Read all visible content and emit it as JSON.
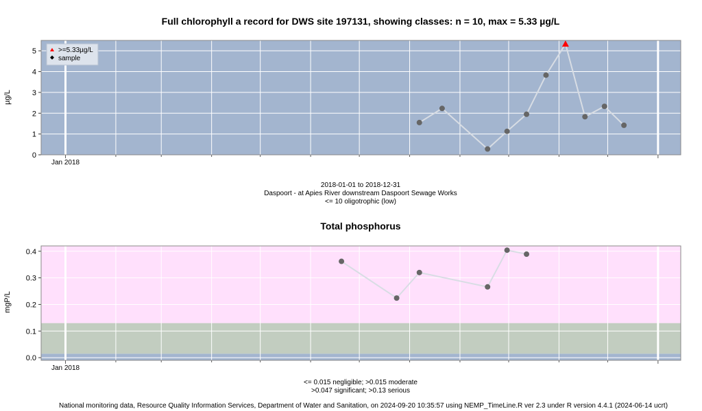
{
  "chart_data": [
    {
      "type": "scatter",
      "title": "Full chlorophyll a record for DWS site 197131, showing classes: n = 10, max = 5.33 µg/L",
      "ylabel": "µg/L",
      "xlabel": "",
      "x_tick_labels": [
        "Jan 2018"
      ],
      "y_ticks": [
        0,
        1,
        2,
        3,
        4,
        5
      ],
      "ylim": [
        0,
        5.5
      ],
      "xlim": [
        "2017-12-17",
        "2019-01-15"
      ],
      "grid": true,
      "background_color": "#a3b5cf",
      "legend": {
        "placement": "top-left",
        "items": [
          {
            "label": ">=5.33µg/L",
            "color": "#ff0000",
            "marker": "triangle"
          },
          {
            "label": "sample",
            "color": "#000000",
            "marker": "diamond"
          }
        ]
      },
      "series": [
        {
          "x": [
            "2018-08-07",
            "2018-08-21",
            "2018-09-18",
            "2018-09-30",
            "2018-10-12",
            "2018-10-24",
            "2018-11-05",
            "2018-11-17",
            "2018-11-29",
            "2018-12-11"
          ],
          "y": [
            1.55,
            2.23,
            0.28,
            1.13,
            1.95,
            3.83,
            5.33,
            1.83,
            2.33,
            1.42
          ],
          "color": "#666666"
        }
      ],
      "footer_lines": [
        "2018-01-01 to 2018-12-31",
        "Daspoort - at Apies River downstream Daspoort Sewage Works",
        "<= 10 oligotrophic (low)"
      ]
    },
    {
      "type": "scatter",
      "title": "Total phosphorus",
      "ylabel": "mgP/L",
      "xlabel": "",
      "x_tick_labels": [
        "Jan 2018"
      ],
      "y_ticks": [
        0.0,
        0.1,
        0.2,
        0.3,
        0.4
      ],
      "ylim": [
        -0.01,
        0.42
      ],
      "xlim": [
        "2017-12-17",
        "2019-01-15"
      ],
      "grid": true,
      "bands": [
        {
          "from": -0.01,
          "to": 0.015,
          "label": "negligible",
          "color": "#a3b5cf"
        },
        {
          "from": 0.015,
          "to": 0.13,
          "label": "moderate / significant",
          "color": "#c2cdc0"
        },
        {
          "from": 0.13,
          "to": 0.42,
          "label": "serious",
          "color": "#ffe0fc"
        }
      ],
      "series": [
        {
          "x": [
            "2018-06-20",
            "2018-07-24",
            "2018-08-07",
            "2018-08-21",
            "2018-09-18",
            "2018-09-30",
            "2018-10-12"
          ],
          "y": [
            0.362,
            0.224,
            0.32,
            null,
            0.266,
            0.404,
            0.389
          ],
          "color": "#666666"
        }
      ],
      "footer_lines": [
        "<= 0.015 negligible; >0.015 moderate",
        ">0.047 significant; >0.13 serious"
      ]
    }
  ],
  "credit": "National monitoring data, Resource Quality Information Services, Department of Water and Sanitation, on 2024-09-20 10:35:57 using NEMP_TimeLine.R ver 2.3 under R version 4.4.1 (2024-06-14 ucrt)"
}
